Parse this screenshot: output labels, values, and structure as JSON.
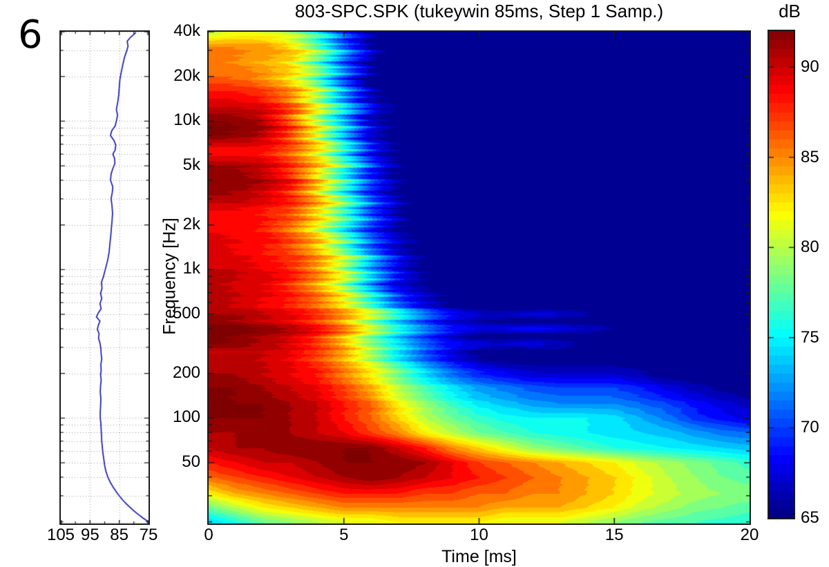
{
  "figure_label": "6",
  "title": "803-SPC.SPK (tukeywin 85ms, Step 1 Samp.)",
  "colorbar": {
    "label": "dB",
    "vmin_db": 65,
    "vmax_db": 92,
    "colormap": "jet",
    "tick_values": [
      90,
      85,
      80,
      75,
      70,
      65
    ]
  },
  "main_plot": {
    "ylabel": "Frequency [Hz]",
    "xlabel": "Time [ms]",
    "x_ticks": [
      {
        "label": "0",
        "value": 0
      },
      {
        "label": "5",
        "value": 5
      },
      {
        "label": "10",
        "value": 10
      },
      {
        "label": "15",
        "value": 15
      },
      {
        "label": "20",
        "value": 20
      }
    ],
    "y_ticks": [
      {
        "label": "40k",
        "value": 40000
      },
      {
        "label": "20k",
        "value": 20000
      },
      {
        "label": "10k",
        "value": 10000
      },
      {
        "label": "5k",
        "value": 5000
      },
      {
        "label": "2k",
        "value": 2000
      },
      {
        "label": "1k",
        "value": 1000
      },
      {
        "label": "500",
        "value": 500
      },
      {
        "label": "200",
        "value": 200
      },
      {
        "label": "100",
        "value": 100
      },
      {
        "label": "50",
        "value": 50
      }
    ]
  },
  "inset": {
    "x_ticks": [
      {
        "label": "105",
        "value": 105
      },
      {
        "label": "95",
        "value": 95
      },
      {
        "label": "85",
        "value": 85
      },
      {
        "label": "75",
        "value": 75
      }
    ],
    "grid_x_values": [
      95,
      85
    ]
  },
  "colors": {
    "curve_blue": "#1a1ab4",
    "grid_gray": "#9a9a9a",
    "axis_black": "#1a1a1a",
    "background": "#ffffff"
  },
  "chart_data": [
    {
      "type": "heatmap",
      "name": "spectral-decay-spectrogram",
      "title": "803-SPC.SPK (tukeywin 85ms, Step 1 Samp.)",
      "xlabel": "Time [ms]",
      "ylabel": "Frequency [Hz]",
      "yscale": "log",
      "x_range_ms": [
        0,
        20
      ],
      "freq_range_hz": [
        19.5,
        40000
      ],
      "vmin_db": 65,
      "vmax_db": 92,
      "colormap": "jet",
      "x_ms": [
        0,
        1,
        2,
        3,
        4,
        5,
        6,
        7,
        8,
        9,
        10,
        11,
        12,
        13,
        14,
        15,
        16,
        17,
        18,
        19,
        20
      ],
      "frequencies_hz": [
        40000,
        31500,
        25000,
        20000,
        16000,
        12500,
        10000,
        8000,
        6300,
        5000,
        4000,
        3150,
        2500,
        2000,
        1600,
        1250,
        1000,
        800,
        630,
        560,
        500,
        450,
        400,
        360,
        315,
        280,
        250,
        200,
        160,
        125,
        100,
        80,
        63,
        50,
        40,
        31,
        25,
        20
      ],
      "values_db": [
        [
          80,
          81,
          81,
          80,
          76,
          70,
          66,
          65,
          65,
          65,
          65,
          65,
          65,
          65,
          65,
          65,
          65,
          65,
          65,
          65,
          65
        ],
        [
          85,
          85,
          85,
          83,
          78,
          71,
          66,
          65,
          65,
          65,
          65,
          65,
          65,
          65,
          65,
          65,
          65,
          65,
          65,
          65,
          65
        ],
        [
          85,
          85,
          84,
          83,
          78,
          71,
          66,
          65,
          65,
          65,
          65,
          65,
          65,
          65,
          65,
          65,
          65,
          65,
          65,
          65,
          65
        ],
        [
          86,
          86,
          85,
          83,
          79,
          72,
          66,
          65,
          65,
          65,
          65,
          65,
          65,
          65,
          65,
          65,
          65,
          65,
          65,
          65,
          65
        ],
        [
          88,
          88,
          87,
          85,
          80,
          72,
          66,
          65,
          65,
          65,
          65,
          65,
          65,
          65,
          65,
          65,
          65,
          65,
          65,
          65,
          65
        ],
        [
          90,
          90,
          89,
          86,
          80,
          73,
          67,
          65,
          65,
          65,
          65,
          65,
          65,
          65,
          65,
          65,
          65,
          65,
          65,
          65,
          65
        ],
        [
          92,
          92,
          91,
          87,
          81,
          74,
          67,
          65,
          65,
          65,
          65,
          65,
          65,
          65,
          65,
          65,
          65,
          65,
          65,
          65,
          65
        ],
        [
          92,
          92,
          91,
          88,
          83,
          75,
          68,
          65,
          65,
          65,
          65,
          65,
          65,
          65,
          65,
          65,
          65,
          65,
          65,
          65,
          65
        ],
        [
          88,
          88,
          88,
          86,
          82,
          75,
          68,
          65,
          65,
          65,
          65,
          65,
          65,
          65,
          65,
          65,
          65,
          65,
          65,
          65,
          65
        ],
        [
          91,
          91,
          90,
          87,
          83,
          76,
          69,
          65,
          65,
          65,
          65,
          65,
          65,
          65,
          65,
          65,
          65,
          65,
          65,
          65,
          65
        ],
        [
          92,
          92,
          91,
          89,
          84,
          77,
          70,
          66,
          65,
          65,
          65,
          65,
          65,
          65,
          65,
          65,
          65,
          65,
          65,
          65,
          65
        ],
        [
          91,
          91,
          90,
          88,
          84,
          77,
          70,
          66,
          65,
          65,
          65,
          65,
          65,
          65,
          65,
          65,
          65,
          65,
          65,
          65,
          65
        ],
        [
          89,
          89,
          88,
          87,
          83,
          77,
          70,
          66,
          65,
          65,
          65,
          65,
          65,
          65,
          65,
          65,
          65,
          65,
          65,
          65,
          65
        ],
        [
          88,
          88,
          88,
          86,
          82,
          76,
          70,
          66,
          65,
          65,
          65,
          65,
          65,
          65,
          65,
          65,
          65,
          65,
          65,
          65,
          65
        ],
        [
          90,
          89,
          89,
          87,
          84,
          78,
          71,
          67,
          65,
          65,
          65,
          65,
          65,
          65,
          65,
          65,
          65,
          65,
          65,
          65,
          65
        ],
        [
          89,
          89,
          88,
          87,
          84,
          79,
          72,
          67,
          65,
          65,
          65,
          65,
          65,
          65,
          65,
          65,
          65,
          65,
          65,
          65,
          65
        ],
        [
          90,
          90,
          89,
          88,
          85,
          80,
          73,
          68,
          65,
          65,
          65,
          65,
          65,
          65,
          65,
          65,
          65,
          65,
          65,
          65,
          65
        ],
        [
          91,
          90,
          90,
          88,
          85,
          81,
          74,
          68,
          66,
          65,
          65,
          65,
          65,
          65,
          65,
          65,
          65,
          65,
          65,
          65,
          65
        ],
        [
          90,
          90,
          89,
          88,
          86,
          82,
          76,
          70,
          67,
          65,
          65,
          65,
          65,
          65,
          65,
          65,
          65,
          65,
          65,
          65,
          65
        ],
        [
          90,
          90,
          89,
          88,
          86,
          83,
          78,
          72,
          68,
          66,
          65,
          65,
          65,
          65,
          65,
          65,
          65,
          65,
          65,
          65,
          65
        ],
        [
          91,
          91,
          90,
          89,
          87,
          84,
          80,
          75,
          71,
          68,
          67,
          67,
          68,
          67,
          66,
          66,
          65,
          65,
          65,
          65,
          65
        ],
        [
          91,
          91,
          90,
          89,
          87,
          84,
          79,
          74,
          70,
          67,
          66,
          65,
          65,
          65,
          65,
          65,
          65,
          65,
          65,
          65,
          65
        ],
        [
          93,
          93,
          92,
          91,
          89,
          86,
          81,
          76,
          72,
          69,
          68,
          68,
          69,
          68,
          67,
          66,
          66,
          65,
          65,
          65,
          65
        ],
        [
          92,
          92,
          91,
          90,
          88,
          84,
          79,
          74,
          70,
          67,
          65,
          65,
          65,
          65,
          65,
          65,
          65,
          65,
          65,
          65,
          65
        ],
        [
          92,
          92,
          91,
          90,
          88,
          85,
          80,
          76,
          72,
          69,
          68,
          67,
          68,
          67,
          66,
          65,
          65,
          65,
          65,
          65,
          65
        ],
        [
          90,
          90,
          90,
          89,
          87,
          84,
          79,
          74,
          70,
          67,
          65,
          65,
          65,
          65,
          65,
          65,
          65,
          65,
          65,
          65,
          65
        ],
        [
          90,
          90,
          90,
          89,
          87,
          84,
          80,
          75,
          71,
          68,
          66,
          65,
          65,
          65,
          65,
          65,
          65,
          65,
          65,
          65,
          65
        ],
        [
          91,
          91,
          90,
          89,
          88,
          85,
          82,
          78,
          74,
          71,
          69,
          68,
          67,
          67,
          67,
          67,
          66,
          65,
          65,
          65,
          65
        ],
        [
          92,
          92,
          91,
          90,
          89,
          87,
          84,
          80,
          77,
          74.5,
          72.5,
          71.5,
          70.5,
          70,
          70,
          70,
          69,
          67.5,
          66.5,
          65.5,
          65
        ],
        [
          92,
          92,
          92,
          91,
          90,
          88,
          86,
          82,
          79,
          76.5,
          74.5,
          73.5,
          72.5,
          72,
          72,
          72,
          71,
          70,
          68.5,
          67.5,
          66.5
        ],
        [
          92,
          92,
          92,
          91,
          90,
          88,
          86,
          83,
          80,
          78,
          76.5,
          75.5,
          75,
          75,
          75,
          74.5,
          73,
          71.5,
          69.5,
          68.5,
          67.5
        ],
        [
          91,
          91,
          91,
          91,
          90,
          89,
          87,
          85,
          82,
          80,
          78,
          77,
          76,
          75.5,
          75,
          74.5,
          74,
          73.5,
          72.5,
          71.5,
          71
        ],
        [
          90,
          91,
          91,
          92,
          92,
          92,
          92,
          90,
          88,
          85,
          83,
          81,
          79,
          78,
          77,
          76,
          75.5,
          75,
          74.5,
          74,
          73.5
        ],
        [
          88,
          89,
          90,
          90,
          91,
          92,
          92,
          92,
          91,
          89,
          87,
          86,
          85,
          84,
          83,
          82,
          80.5,
          79.5,
          78.5,
          77.5,
          76.5
        ],
        [
          86,
          87,
          88,
          89,
          90,
          91,
          92,
          91,
          90,
          89,
          88,
          87,
          86,
          85,
          84,
          83,
          81.5,
          80,
          79,
          78,
          77.5
        ],
        [
          82,
          84,
          85,
          86,
          87,
          88,
          88,
          88,
          87,
          87,
          86,
          86,
          85,
          85,
          84,
          83,
          81.5,
          80.5,
          79.5,
          79,
          78.5
        ],
        [
          78,
          80,
          82,
          83,
          84,
          85,
          85,
          85,
          85,
          85,
          85,
          84,
          84,
          84,
          83,
          82,
          80.5,
          79.5,
          78.5,
          78,
          77.5
        ],
        [
          74,
          76,
          78,
          79,
          80,
          81,
          81,
          82,
          82,
          82,
          82,
          81,
          81,
          81,
          80,
          79,
          78,
          77.5,
          77,
          76.5,
          76
        ]
      ]
    },
    {
      "type": "line",
      "name": "on-axis-frequency-response",
      "orientation": "vertical",
      "x_range_db": [
        105,
        75
      ],
      "x_reversed": true,
      "yscale": "log",
      "freq_range_hz": [
        19.5,
        40000
      ],
      "points_freq_db": [
        [
          39500,
          79.3
        ],
        [
          37000,
          81
        ],
        [
          34500,
          82.3
        ],
        [
          32000,
          82
        ],
        [
          30000,
          82.4
        ],
        [
          27000,
          83.2
        ],
        [
          24000,
          83.8
        ],
        [
          21000,
          84.4
        ],
        [
          19000,
          84.8
        ],
        [
          17000,
          85
        ],
        [
          15000,
          85.2
        ],
        [
          13500,
          85.5
        ],
        [
          12000,
          86
        ],
        [
          11000,
          85.6
        ],
        [
          10200,
          85.9
        ],
        [
          9300,
          86.4
        ],
        [
          8600,
          87.6
        ],
        [
          8000,
          88
        ],
        [
          7400,
          86.8
        ],
        [
          6900,
          86.2
        ],
        [
          6400,
          86.4
        ],
        [
          6000,
          87.2
        ],
        [
          5600,
          86.6
        ],
        [
          5200,
          86.5
        ],
        [
          4800,
          87.2
        ],
        [
          4400,
          87.8
        ],
        [
          4000,
          88
        ],
        [
          3600,
          87.2
        ],
        [
          3300,
          87.4
        ],
        [
          3000,
          87.8
        ],
        [
          2700,
          87.5
        ],
        [
          2400,
          87.3
        ],
        [
          2100,
          87.5
        ],
        [
          1900,
          87.7
        ],
        [
          1700,
          87.9
        ],
        [
          1500,
          88.2
        ],
        [
          1300,
          88.5
        ],
        [
          1150,
          89
        ],
        [
          1000,
          89.8
        ],
        [
          900,
          90.4
        ],
        [
          820,
          91.1
        ],
        [
          750,
          90.9
        ],
        [
          690,
          91.4
        ],
        [
          640,
          91
        ],
        [
          590,
          91.6
        ],
        [
          545,
          91.2
        ],
        [
          510,
          92.2
        ],
        [
          480,
          92.8
        ],
        [
          450,
          91.6
        ],
        [
          420,
          92.2
        ],
        [
          395,
          92.5
        ],
        [
          370,
          91.9
        ],
        [
          345,
          92.1
        ],
        [
          320,
          91.6
        ],
        [
          295,
          91.3
        ],
        [
          270,
          91.2
        ],
        [
          250,
          91
        ],
        [
          230,
          91.3
        ],
        [
          210,
          91.2
        ],
        [
          195,
          91.4
        ],
        [
          180,
          91.2
        ],
        [
          165,
          91.4
        ],
        [
          150,
          91.5
        ],
        [
          135,
          91.3
        ],
        [
          120,
          91.4
        ],
        [
          110,
          91.5
        ],
        [
          100,
          91.5
        ],
        [
          92,
          91.3
        ],
        [
          84,
          91.2
        ],
        [
          77,
          91.1
        ],
        [
          70,
          91
        ],
        [
          64,
          90.8
        ],
        [
          58,
          90.6
        ],
        [
          53,
          90.3
        ],
        [
          48,
          90
        ],
        [
          44,
          89.6
        ],
        [
          40,
          88.9
        ],
        [
          37,
          88.1
        ],
        [
          34,
          87
        ],
        [
          31,
          85.6
        ],
        [
          28,
          83.8
        ],
        [
          26,
          82.2
        ],
        [
          24,
          80.3
        ],
        [
          22.5,
          78.6
        ],
        [
          21.3,
          77
        ],
        [
          20.3,
          75.5
        ],
        [
          19.8,
          74.8
        ]
      ]
    }
  ]
}
